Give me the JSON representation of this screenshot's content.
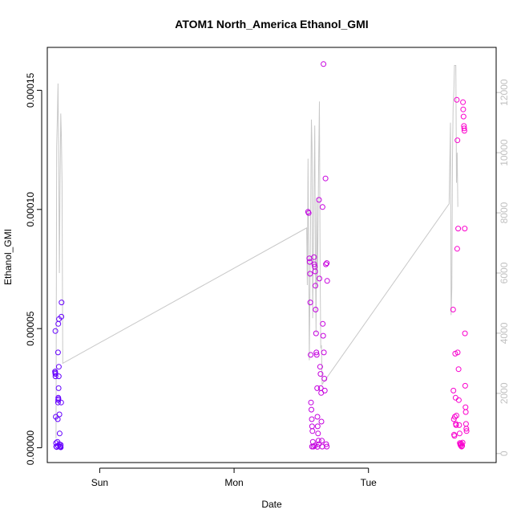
{
  "chart_data": {
    "type": "scatter",
    "title": "ATOM1 North_America Ethanol_GMI",
    "xlabel": "Date",
    "ylabel": "Ethanol_GMI",
    "x_tick_labels": [
      "Sun",
      "Mon",
      "Tue"
    ],
    "x_tick_positions_days": [
      1,
      2,
      3
    ],
    "xlim_days": [
      0.61,
      3.95
    ],
    "ylim": [
      -6.2e-06,
      0.000168
    ],
    "y_ticks": [
      0,
      5e-05,
      0.0001,
      0.00015
    ],
    "y_tick_labels": [
      "0.00000",
      "0.00005",
      "0.00010",
      "0.00015"
    ],
    "y2lim": [
      -300,
      13500
    ],
    "y2_ticks": [
      0,
      2000,
      4000,
      6000,
      8000,
      10000,
      12000
    ],
    "y2_tick_labels": [
      "0",
      "2000",
      "4000",
      "6000",
      "8000",
      "10000",
      "12000"
    ],
    "grid": false,
    "legend": "none",
    "colors": {
      "points_start": "#6000ff",
      "points_end": "#ff00cc",
      "secondary_line": "#c8c8c8",
      "secondary_axis": "#c0c0c0",
      "axis": "#000000"
    },
    "points": [
      {
        "x": 0.67,
        "y": 4.9e-05
      },
      {
        "x": 0.668,
        "y": 3.2e-05
      },
      {
        "x": 0.669,
        "y": 3.15e-05
      },
      {
        "x": 0.67,
        "y": 3.1e-05
      },
      {
        "x": 0.671,
        "y": 3e-05
      },
      {
        "x": 0.673,
        "y": 1.3e-05
      },
      {
        "x": 0.675,
        "y": 2e-06
      },
      {
        "x": 0.677,
        "y": 5e-07
      },
      {
        "x": 0.68,
        "y": 3e-07
      },
      {
        "x": 0.685,
        "y": 2.5e-06
      },
      {
        "x": 0.688,
        "y": 1.2e-05
      },
      {
        "x": 0.69,
        "y": 1.9e-05
      },
      {
        "x": 0.691,
        "y": 2e-05
      },
      {
        "x": 0.692,
        "y": 2.1e-05
      },
      {
        "x": 0.693,
        "y": 2.05e-05
      },
      {
        "x": 0.694,
        "y": 2.5e-05
      },
      {
        "x": 0.695,
        "y": 3e-05
      },
      {
        "x": 0.696,
        "y": 3.4e-05
      },
      {
        "x": 0.69,
        "y": 4e-05
      },
      {
        "x": 0.692,
        "y": 5.2e-05
      },
      {
        "x": 0.697,
        "y": 5.4e-05
      },
      {
        "x": 0.7,
        "y": 1.4e-05
      },
      {
        "x": 0.702,
        "y": 6e-06
      },
      {
        "x": 0.705,
        "y": 6e-07
      },
      {
        "x": 0.708,
        "y": 4e-07
      },
      {
        "x": 0.71,
        "y": 1.2e-06
      },
      {
        "x": 0.713,
        "y": 1.9e-05
      },
      {
        "x": 0.715,
        "y": 5.5e-05
      },
      {
        "x": 0.716,
        "y": 6.1e-05
      },
      {
        "x": 0.69,
        "y": 8e-07
      },
      {
        "x": 0.7,
        "y": 1.5e-06
      },
      {
        "x": 0.71,
        "y": 2e-07
      },
      {
        "x": 2.55,
        "y": 9.9e-05
      },
      {
        "x": 2.555,
        "y": 9.85e-05
      },
      {
        "x": 2.56,
        "y": 7.95e-05
      },
      {
        "x": 2.562,
        "y": 7.8e-05
      },
      {
        "x": 2.565,
        "y": 7.3e-05
      },
      {
        "x": 2.567,
        "y": 6.1e-05
      },
      {
        "x": 2.57,
        "y": 3.9e-05
      },
      {
        "x": 2.572,
        "y": 1.9e-05
      },
      {
        "x": 2.575,
        "y": 1.6e-05
      },
      {
        "x": 2.578,
        "y": 1.2e-05
      },
      {
        "x": 2.58,
        "y": 9e-06
      },
      {
        "x": 2.583,
        "y": 7e-06
      },
      {
        "x": 2.586,
        "y": 2.5e-06
      },
      {
        "x": 2.59,
        "y": 5e-07
      },
      {
        "x": 2.595,
        "y": 8e-05
      },
      {
        "x": 2.597,
        "y": 7.7e-05
      },
      {
        "x": 2.6,
        "y": 7.6e-05
      },
      {
        "x": 2.603,
        "y": 7.4e-05
      },
      {
        "x": 2.605,
        "y": 6.8e-05
      },
      {
        "x": 2.607,
        "y": 5.8e-05
      },
      {
        "x": 2.61,
        "y": 4.8e-05
      },
      {
        "x": 2.612,
        "y": 4e-05
      },
      {
        "x": 2.615,
        "y": 3.9e-05
      },
      {
        "x": 2.618,
        "y": 2.5e-05
      },
      {
        "x": 2.62,
        "y": 1.3e-05
      },
      {
        "x": 2.622,
        "y": 9e-06
      },
      {
        "x": 2.625,
        "y": 6e-06
      },
      {
        "x": 2.628,
        "y": 3e-06
      },
      {
        "x": 2.63,
        "y": 1.5e-06
      },
      {
        "x": 2.632,
        "y": 0.000104
      },
      {
        "x": 2.635,
        "y": 7.1e-05
      },
      {
        "x": 2.64,
        "y": 3.4e-05
      },
      {
        "x": 2.643,
        "y": 3.1e-05
      },
      {
        "x": 2.645,
        "y": 2.5e-05
      },
      {
        "x": 2.648,
        "y": 2.3e-05
      },
      {
        "x": 2.65,
        "y": 1.1e-05
      },
      {
        "x": 2.653,
        "y": 3e-06
      },
      {
        "x": 2.656,
        "y": 5e-07
      },
      {
        "x": 2.658,
        "y": 0.000101
      },
      {
        "x": 2.66,
        "y": 5.2e-05
      },
      {
        "x": 2.663,
        "y": 4.7e-05
      },
      {
        "x": 2.665,
        "y": 0.000161
      },
      {
        "x": 2.668,
        "y": 4e-05
      },
      {
        "x": 2.672,
        "y": 2.9e-05
      },
      {
        "x": 2.675,
        "y": 2.4e-05
      },
      {
        "x": 2.68,
        "y": 0.000113
      },
      {
        "x": 2.683,
        "y": 7.7e-05
      },
      {
        "x": 2.69,
        "y": 7.75e-05
      },
      {
        "x": 2.693,
        "y": 7e-05
      },
      {
        "x": 2.685,
        "y": 1.5e-06
      },
      {
        "x": 2.69,
        "y": 5e-07
      },
      {
        "x": 2.58,
        "y": 5e-07
      },
      {
        "x": 2.6,
        "y": 9e-07
      },
      {
        "x": 2.62,
        "y": 4e-07
      },
      {
        "x": 3.63,
        "y": 5.8e-05
      },
      {
        "x": 3.632,
        "y": 2.4e-05
      },
      {
        "x": 3.635,
        "y": 1.2e-05
      },
      {
        "x": 3.637,
        "y": 5.5e-06
      },
      {
        "x": 3.64,
        "y": 5e-06
      },
      {
        "x": 3.642,
        "y": 1.3e-05
      },
      {
        "x": 3.645,
        "y": 3.95e-05
      },
      {
        "x": 3.648,
        "y": 2.1e-05
      },
      {
        "x": 3.65,
        "y": 1e-05
      },
      {
        "x": 3.652,
        "y": 9.5e-06
      },
      {
        "x": 3.655,
        "y": 1.35e-05
      },
      {
        "x": 3.657,
        "y": 0.000146
      },
      {
        "x": 3.66,
        "y": 8.35e-05
      },
      {
        "x": 3.662,
        "y": 0.000129
      },
      {
        "x": 3.664,
        "y": 4e-05
      },
      {
        "x": 3.667,
        "y": 9.2e-05
      },
      {
        "x": 3.67,
        "y": 3.3e-05
      },
      {
        "x": 3.672,
        "y": 2e-05
      },
      {
        "x": 3.675,
        "y": 9.5e-06
      },
      {
        "x": 3.678,
        "y": 6e-06
      },
      {
        "x": 3.68,
        "y": 2e-06
      },
      {
        "x": 3.683,
        "y": 1.5e-06
      },
      {
        "x": 3.686,
        "y": 1e-06
      },
      {
        "x": 3.69,
        "y": 1.8e-06
      },
      {
        "x": 3.693,
        "y": 5e-07
      },
      {
        "x": 3.697,
        "y": 8e-07
      },
      {
        "x": 3.7,
        "y": 2.2e-06
      },
      {
        "x": 3.703,
        "y": 0.000145
      },
      {
        "x": 3.705,
        "y": 0.000142
      },
      {
        "x": 3.707,
        "y": 0.000139
      },
      {
        "x": 3.71,
        "y": 0.000135
      },
      {
        "x": 3.712,
        "y": 0.000134
      },
      {
        "x": 3.714,
        "y": 0.000133
      },
      {
        "x": 3.716,
        "y": 9.2e-05
      },
      {
        "x": 3.718,
        "y": 4.8e-05
      },
      {
        "x": 3.72,
        "y": 2.6e-05
      },
      {
        "x": 3.722,
        "y": 1.7e-05
      },
      {
        "x": 3.724,
        "y": 1.5e-05
      },
      {
        "x": 3.726,
        "y": 1e-05
      },
      {
        "x": 3.728,
        "y": 8e-06
      },
      {
        "x": 3.73,
        "y": 7e-06
      }
    ],
    "secondary_line": [
      {
        "x": 0.675,
        "y2": 500
      },
      {
        "x": 0.68,
        "y2": 10200
      },
      {
        "x": 0.685,
        "y2": 11200
      },
      {
        "x": 0.69,
        "y2": 12300
      },
      {
        "x": 0.695,
        "y2": 9500
      },
      {
        "x": 0.7,
        "y2": 6000
      },
      {
        "x": 0.705,
        "y2": 9000
      },
      {
        "x": 0.71,
        "y2": 11300
      },
      {
        "x": 0.715,
        "y2": 10500
      },
      {
        "x": 0.72,
        "y2": 9000
      },
      {
        "x": 0.725,
        "y2": 3000
      },
      {
        "x": 2.54,
        "y2": 7500
      },
      {
        "x": 2.545,
        "y2": 5600
      },
      {
        "x": 2.55,
        "y2": 9800
      },
      {
        "x": 2.555,
        "y2": 6500
      },
      {
        "x": 2.56,
        "y2": 3100
      },
      {
        "x": 2.57,
        "y2": 8000
      },
      {
        "x": 2.575,
        "y2": 11100
      },
      {
        "x": 2.58,
        "y2": 10200
      },
      {
        "x": 2.585,
        "y2": 4500
      },
      {
        "x": 2.59,
        "y2": 7000
      },
      {
        "x": 2.6,
        "y2": 10900
      },
      {
        "x": 2.605,
        "y2": 6500
      },
      {
        "x": 2.61,
        "y2": 4000
      },
      {
        "x": 2.615,
        "y2": 8500
      },
      {
        "x": 2.62,
        "y2": 5500
      },
      {
        "x": 2.63,
        "y2": 10000
      },
      {
        "x": 2.635,
        "y2": 11700
      },
      {
        "x": 2.64,
        "y2": 6000
      },
      {
        "x": 2.645,
        "y2": 3500
      },
      {
        "x": 2.65,
        "y2": 3600
      },
      {
        "x": 2.655,
        "y2": 2300
      },
      {
        "x": 3.6,
        "y2": 8300
      },
      {
        "x": 3.61,
        "y2": 11000
      },
      {
        "x": 3.615,
        "y2": 4600
      },
      {
        "x": 3.62,
        "y2": 5500
      },
      {
        "x": 3.625,
        "y2": 9800
      },
      {
        "x": 3.63,
        "y2": 11500
      },
      {
        "x": 3.635,
        "y2": 12000
      },
      {
        "x": 3.64,
        "y2": 12900
      },
      {
        "x": 3.65,
        "y2": 12900
      },
      {
        "x": 3.655,
        "y2": 9000
      },
      {
        "x": 3.66,
        "y2": 10000
      },
      {
        "x": 3.665,
        "y2": 8200
      }
    ]
  }
}
